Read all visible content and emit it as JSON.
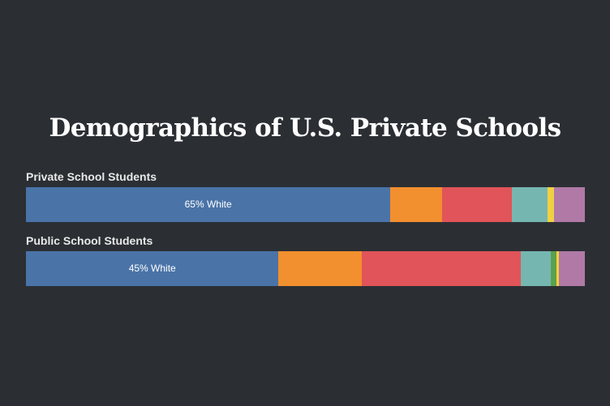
{
  "chart_data": {
    "type": "bar",
    "orientation": "horizontal",
    "stacked": true,
    "title": "Demographics of U.S. Private Schools",
    "xlim": [
      0,
      100
    ],
    "unit": "%",
    "colors": [
      "#4a74a8",
      "#f28f2e",
      "#e15459",
      "#76b6b1",
      "#f6d13b",
      "#b079a6",
      "#59a14f"
    ],
    "rows": [
      {
        "label": "Private School Students",
        "value_label": "65% White",
        "segments": [
          {
            "value": 65.2,
            "color": "#4a74a8"
          },
          {
            "value": 9.3,
            "color": "#f28f2e"
          },
          {
            "value": 12.4,
            "color": "#e15459"
          },
          {
            "value": 6.4,
            "color": "#76b6b1"
          },
          {
            "value": 0.6,
            "color": "#f6d13b"
          },
          {
            "value": 0.6,
            "color": "#ead04a"
          },
          {
            "value": 5.5,
            "color": "#b079a6"
          }
        ]
      },
      {
        "label": "Public School Students",
        "value_label": "45% White",
        "segments": [
          {
            "value": 45.2,
            "color": "#4a74a8"
          },
          {
            "value": 14.9,
            "color": "#f28f2e"
          },
          {
            "value": 28.4,
            "color": "#e15459"
          },
          {
            "value": 5.4,
            "color": "#76b6b1"
          },
          {
            "value": 1.0,
            "color": "#59a14f"
          },
          {
            "value": 0.4,
            "color": "#f6d13b"
          },
          {
            "value": 4.7,
            "color": "#b079a6"
          }
        ]
      }
    ]
  }
}
